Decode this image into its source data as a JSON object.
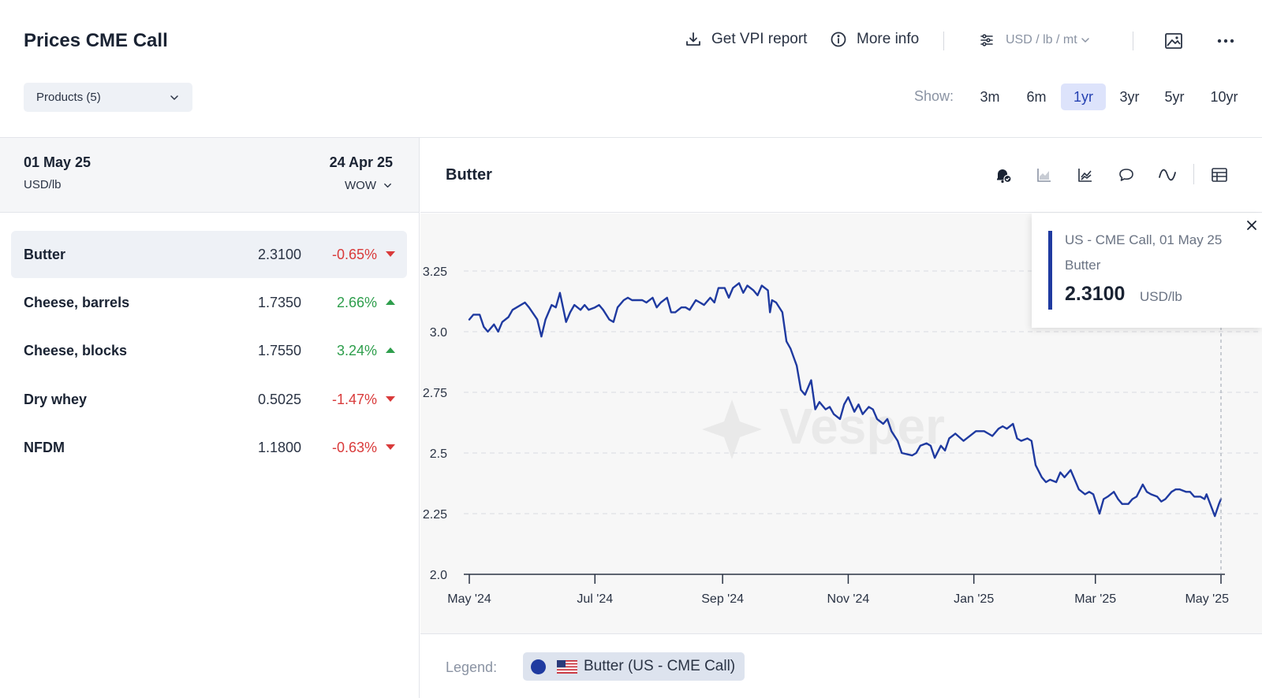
{
  "header": {
    "title": "Prices CME Call",
    "vpi_label": "Get VPI report",
    "info_label": "More info",
    "units_label": "USD / lb / mt",
    "products_label": "Products (5)",
    "show_label": "Show:",
    "ranges": [
      "3m",
      "6m",
      "1yr",
      "3yr",
      "5yr",
      "10yr"
    ],
    "active_range": "1yr"
  },
  "list": {
    "date": "01 May 25",
    "unit": "USD/lb",
    "compare_date": "24 Apr 25",
    "compare_mode": "WOW",
    "rows": [
      {
        "name": "Butter",
        "value": "2.3100",
        "change": "-0.65%",
        "direction": "down"
      },
      {
        "name": "Cheese, barrels",
        "value": "1.7350",
        "change": "2.66%",
        "direction": "up"
      },
      {
        "name": "Cheese, blocks",
        "value": "1.7550",
        "change": "3.24%",
        "direction": "up"
      },
      {
        "name": "Dry whey",
        "value": "0.5025",
        "change": "-1.47%",
        "direction": "down"
      },
      {
        "name": "NFDM",
        "value": "1.1800",
        "change": "-0.63%",
        "direction": "down"
      }
    ]
  },
  "chart_panel": {
    "title": "Butter",
    "tools": [
      "alert-bell-icon",
      "area-chart-icon",
      "trend-chart-icon",
      "comment-icon",
      "smooth-line-icon",
      "table-icon"
    ],
    "watermark": "Vesper"
  },
  "tooltip": {
    "series_line": "US - CME Call, 01 May 25",
    "product": "Butter",
    "value": "2.3100",
    "unit": "USD/lb"
  },
  "legend": {
    "label": "Legend:",
    "item": "Butter (US - CME Call)"
  },
  "colors": {
    "series": "#1f3aa0",
    "negative": "#d93a3a",
    "positive": "#2e9e4c",
    "active_range_bg": "#dde3fb"
  },
  "chart_data": {
    "type": "line",
    "title": "Butter",
    "xlabel": "",
    "ylabel": "",
    "ylim": [
      2.0,
      3.25
    ],
    "yticks": [
      "2.0",
      "2.25",
      "2.5",
      "2.75",
      "3.0",
      "3.25"
    ],
    "x_ticks": [
      {
        "label": "May '24",
        "x": "2024-05-01"
      },
      {
        "label": "Jul '24",
        "x": "2024-07-01"
      },
      {
        "label": "Sep '24",
        "x": "2024-09-01"
      },
      {
        "label": "Nov '24",
        "x": "2024-11-01"
      },
      {
        "label": "Jan '25",
        "x": "2025-01-01"
      },
      {
        "label": "Mar '25",
        "x": "2025-03-01"
      },
      {
        "label": "May '25",
        "x": "2025-05-01"
      }
    ],
    "grid": true,
    "series": [
      {
        "name": "Butter (US - CME Call)",
        "points": [
          [
            "2024-05-01",
            3.05
          ],
          [
            "2024-05-03",
            3.07
          ],
          [
            "2024-05-06",
            3.07
          ],
          [
            "2024-05-08",
            3.02
          ],
          [
            "2024-05-10",
            3.0
          ],
          [
            "2024-05-13",
            3.03
          ],
          [
            "2024-05-15",
            3.0
          ],
          [
            "2024-05-17",
            3.04
          ],
          [
            "2024-05-20",
            3.06
          ],
          [
            "2024-05-22",
            3.09
          ],
          [
            "2024-05-24",
            3.1
          ],
          [
            "2024-05-28",
            3.12
          ],
          [
            "2024-05-30",
            3.1
          ],
          [
            "2024-06-03",
            3.05
          ],
          [
            "2024-06-05",
            2.98
          ],
          [
            "2024-06-07",
            3.05
          ],
          [
            "2024-06-10",
            3.11
          ],
          [
            "2024-06-12",
            3.1
          ],
          [
            "2024-06-14",
            3.16
          ],
          [
            "2024-06-17",
            3.04
          ],
          [
            "2024-06-19",
            3.08
          ],
          [
            "2024-06-21",
            3.11
          ],
          [
            "2024-06-24",
            3.09
          ],
          [
            "2024-06-26",
            3.11
          ],
          [
            "2024-06-28",
            3.09
          ],
          [
            "2024-07-01",
            3.1
          ],
          [
            "2024-07-03",
            3.11
          ],
          [
            "2024-07-05",
            3.09
          ],
          [
            "2024-07-08",
            3.05
          ],
          [
            "2024-07-10",
            3.04
          ],
          [
            "2024-07-12",
            3.1
          ],
          [
            "2024-07-15",
            3.13
          ],
          [
            "2024-07-17",
            3.14
          ],
          [
            "2024-07-19",
            3.13
          ],
          [
            "2024-07-22",
            3.13
          ],
          [
            "2024-07-24",
            3.13
          ],
          [
            "2024-07-26",
            3.12
          ],
          [
            "2024-07-29",
            3.14
          ],
          [
            "2024-07-31",
            3.1
          ],
          [
            "2024-08-02",
            3.12
          ],
          [
            "2024-08-05",
            3.14
          ],
          [
            "2024-08-07",
            3.08
          ],
          [
            "2024-08-09",
            3.08
          ],
          [
            "2024-08-12",
            3.1
          ],
          [
            "2024-08-14",
            3.1
          ],
          [
            "2024-08-16",
            3.09
          ],
          [
            "2024-08-19",
            3.13
          ],
          [
            "2024-08-21",
            3.12
          ],
          [
            "2024-08-23",
            3.11
          ],
          [
            "2024-08-26",
            3.14
          ],
          [
            "2024-08-28",
            3.12
          ],
          [
            "2024-08-30",
            3.18
          ],
          [
            "2024-09-02",
            3.18
          ],
          [
            "2024-09-04",
            3.14
          ],
          [
            "2024-09-06",
            3.18
          ],
          [
            "2024-09-09",
            3.2
          ],
          [
            "2024-09-11",
            3.16
          ],
          [
            "2024-09-13",
            3.19
          ],
          [
            "2024-09-16",
            3.17
          ],
          [
            "2024-09-18",
            3.15
          ],
          [
            "2024-09-20",
            3.19
          ],
          [
            "2024-09-23",
            3.17
          ],
          [
            "2024-09-24",
            3.08
          ],
          [
            "2024-09-25",
            3.13
          ],
          [
            "2024-09-27",
            3.12
          ],
          [
            "2024-09-30",
            3.08
          ],
          [
            "2024-10-02",
            2.96
          ],
          [
            "2024-10-04",
            2.93
          ],
          [
            "2024-10-07",
            2.86
          ],
          [
            "2024-10-09",
            2.76
          ],
          [
            "2024-10-11",
            2.74
          ],
          [
            "2024-10-14",
            2.8
          ],
          [
            "2024-10-16",
            2.68
          ],
          [
            "2024-10-18",
            2.71
          ],
          [
            "2024-10-21",
            2.68
          ],
          [
            "2024-10-23",
            2.69
          ],
          [
            "2024-10-25",
            2.66
          ],
          [
            "2024-10-28",
            2.64
          ],
          [
            "2024-10-30",
            2.7
          ],
          [
            "2024-11-01",
            2.73
          ],
          [
            "2024-11-04",
            2.67
          ],
          [
            "2024-11-06",
            2.7
          ],
          [
            "2024-11-08",
            2.66
          ],
          [
            "2024-11-11",
            2.69
          ],
          [
            "2024-11-13",
            2.68
          ],
          [
            "2024-11-15",
            2.64
          ],
          [
            "2024-11-18",
            2.62
          ],
          [
            "2024-11-20",
            2.64
          ],
          [
            "2024-11-22",
            2.59
          ],
          [
            "2024-11-25",
            2.55
          ],
          [
            "2024-11-27",
            2.5
          ],
          [
            "2024-12-02",
            2.49
          ],
          [
            "2024-12-04",
            2.5
          ],
          [
            "2024-12-06",
            2.53
          ],
          [
            "2024-12-09",
            2.54
          ],
          [
            "2024-12-11",
            2.53
          ],
          [
            "2024-12-13",
            2.48
          ],
          [
            "2024-12-16",
            2.53
          ],
          [
            "2024-12-18",
            2.51
          ],
          [
            "2024-12-20",
            2.56
          ],
          [
            "2024-12-23",
            2.58
          ],
          [
            "2024-12-27",
            2.55
          ],
          [
            "2024-12-30",
            2.57
          ],
          [
            "2025-01-02",
            2.59
          ],
          [
            "2025-01-06",
            2.59
          ],
          [
            "2025-01-08",
            2.58
          ],
          [
            "2025-01-10",
            2.57
          ],
          [
            "2025-01-13",
            2.6
          ],
          [
            "2025-01-15",
            2.61
          ],
          [
            "2025-01-17",
            2.6
          ],
          [
            "2025-01-20",
            2.62
          ],
          [
            "2025-01-22",
            2.56
          ],
          [
            "2025-01-24",
            2.55
          ],
          [
            "2025-01-27",
            2.56
          ],
          [
            "2025-01-29",
            2.55
          ],
          [
            "2025-01-31",
            2.45
          ],
          [
            "2025-02-03",
            2.4
          ],
          [
            "2025-02-05",
            2.38
          ],
          [
            "2025-02-07",
            2.39
          ],
          [
            "2025-02-10",
            2.38
          ],
          [
            "2025-02-12",
            2.42
          ],
          [
            "2025-02-14",
            2.4
          ],
          [
            "2025-02-17",
            2.43
          ],
          [
            "2025-02-19",
            2.39
          ],
          [
            "2025-02-21",
            2.35
          ],
          [
            "2025-02-24",
            2.33
          ],
          [
            "2025-02-26",
            2.34
          ],
          [
            "2025-02-28",
            2.33
          ],
          [
            "2025-03-03",
            2.25
          ],
          [
            "2025-03-05",
            2.31
          ],
          [
            "2025-03-07",
            2.32
          ],
          [
            "2025-03-10",
            2.34
          ],
          [
            "2025-03-12",
            2.31
          ],
          [
            "2025-03-14",
            2.29
          ],
          [
            "2025-03-17",
            2.29
          ],
          [
            "2025-03-19",
            2.31
          ],
          [
            "2025-03-21",
            2.32
          ],
          [
            "2025-03-24",
            2.37
          ],
          [
            "2025-03-26",
            2.34
          ],
          [
            "2025-03-28",
            2.33
          ],
          [
            "2025-03-31",
            2.32
          ],
          [
            "2025-04-02",
            2.3
          ],
          [
            "2025-04-04",
            2.31
          ],
          [
            "2025-04-07",
            2.34
          ],
          [
            "2025-04-09",
            2.35
          ],
          [
            "2025-04-11",
            2.35
          ],
          [
            "2025-04-14",
            2.34
          ],
          [
            "2025-04-16",
            2.34
          ],
          [
            "2025-04-18",
            2.32
          ],
          [
            "2025-04-21",
            2.32
          ],
          [
            "2025-04-23",
            2.31
          ],
          [
            "2025-04-24",
            2.33
          ],
          [
            "2025-04-28",
            2.24
          ],
          [
            "2025-04-30",
            2.29
          ],
          [
            "2025-05-01",
            2.31
          ]
        ]
      }
    ]
  }
}
